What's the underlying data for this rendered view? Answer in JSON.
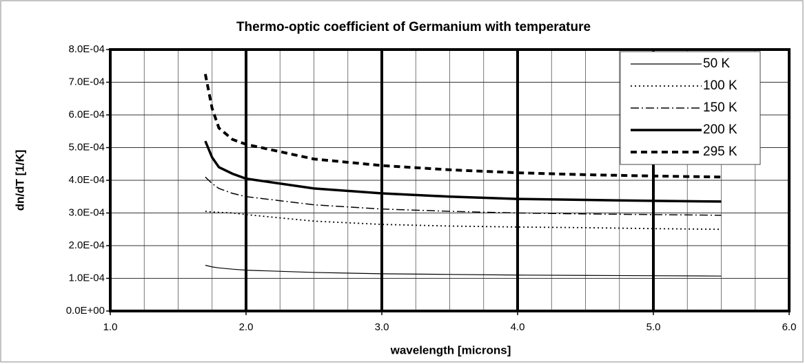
{
  "chart_data": {
    "type": "line",
    "title": "Thermo-optic coefficient of Germanium with temperature",
    "xlabel": "wavelength [microns]",
    "ylabel": "dn/dT [1/K]",
    "x": [
      1.7,
      1.75,
      1.8,
      1.9,
      2.0,
      2.5,
      3.0,
      3.5,
      4.0,
      4.5,
      5.0,
      5.5
    ],
    "series": [
      {
        "name": "50 K",
        "color": "#000000",
        "line_style": "solid",
        "values": [
          0.00014,
          0.000135,
          0.000132,
          0.000128,
          0.000125,
          0.000118,
          0.000114,
          0.000112,
          0.00011,
          0.000109,
          0.000108,
          0.000107
        ]
      },
      {
        "name": "100 K",
        "color": "#000000",
        "line_style": "dotted",
        "values": [
          0.000305,
          0.000303,
          0.000302,
          0.0003,
          0.000295,
          0.000275,
          0.000265,
          0.00026,
          0.000257,
          0.000255,
          0.000252,
          0.00025
        ]
      },
      {
        "name": "150 K",
        "color": "#000000",
        "line_style": "dash-dot",
        "values": [
          0.00041,
          0.00039,
          0.000375,
          0.00036,
          0.00035,
          0.000325,
          0.000312,
          0.000305,
          0.0003,
          0.000297,
          0.000295,
          0.000293
        ]
      },
      {
        "name": "200 K",
        "color": "#000000",
        "line_style": "thick",
        "values": [
          0.00052,
          0.00047,
          0.00044,
          0.00042,
          0.000405,
          0.000375,
          0.00036,
          0.00035,
          0.000343,
          0.00034,
          0.000337,
          0.000335
        ]
      },
      {
        "name": "295 K",
        "color": "#000000",
        "line_style": "dashed",
        "values": [
          0.000725,
          0.00062,
          0.00056,
          0.000525,
          0.00051,
          0.000465,
          0.000445,
          0.000432,
          0.000423,
          0.000417,
          0.000413,
          0.00041
        ]
      }
    ],
    "xlim": [
      1,
      6
    ],
    "xticks": [
      {
        "value": 1,
        "label": "1.0"
      },
      {
        "value": 2,
        "label": "2.0"
      },
      {
        "value": 3,
        "label": "3.0"
      },
      {
        "value": 4,
        "label": "4.0"
      },
      {
        "value": 5,
        "label": "5.0"
      },
      {
        "value": 6,
        "label": "6.0"
      }
    ],
    "x_minor_grid": [
      1.25,
      1.5,
      1.75,
      2.25,
      2.5,
      2.75,
      3.25,
      3.5,
      3.75,
      4.25,
      4.5,
      4.75,
      5.25,
      5.5,
      5.75
    ],
    "ylim": [
      0,
      0.0008
    ],
    "yticks": [
      {
        "value": 0,
        "label": "0.0E+00"
      },
      {
        "value": 0.0001,
        "label": "1.0E-04"
      },
      {
        "value": 0.0002,
        "label": "2.0E-04"
      },
      {
        "value": 0.0003,
        "label": "3.0E-04"
      },
      {
        "value": 0.0004,
        "label": "4.0E-04"
      },
      {
        "value": 0.0005,
        "label": "5.0E-04"
      },
      {
        "value": 0.0006,
        "label": "6.0E-04"
      },
      {
        "value": 0.0007,
        "label": "7.0E-04"
      },
      {
        "value": 0.0008,
        "label": "8.0E-04"
      }
    ],
    "grid": true,
    "legend": "upper right"
  }
}
